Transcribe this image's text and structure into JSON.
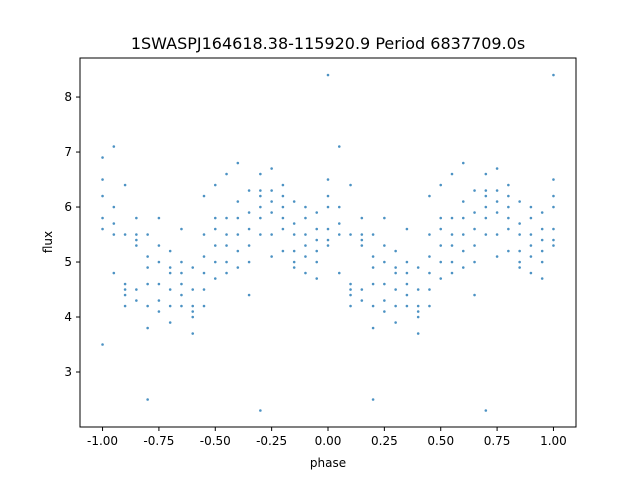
{
  "chart_data": {
    "type": "scatter",
    "title": "1SWASPJ164618.38-115920.9 Period 6837709.0s",
    "xlabel": "phase",
    "ylabel": "flux",
    "xlim": [
      -1.1,
      1.1
    ],
    "ylim": [
      2.0,
      8.71
    ],
    "xticks": [
      "-1.00",
      "-0.75",
      "-0.50",
      "-0.25",
      "0.00",
      "0.25",
      "0.50",
      "0.75",
      "1.00"
    ],
    "xtick_values": [
      -1.0,
      -0.75,
      -0.5,
      -0.25,
      0.0,
      0.25,
      0.5,
      0.75,
      1.0
    ],
    "yticks": [
      "3",
      "4",
      "5",
      "6",
      "7",
      "8"
    ],
    "ytick_values": [
      3,
      4,
      5,
      6,
      7,
      8
    ],
    "grid": false,
    "color": "#1f77b4",
    "points": [
      {
        "x": -1.0,
        "y": [
          6.2,
          6.5,
          5.8,
          5.6,
          6.9,
          3.5
        ]
      },
      {
        "x": -0.95,
        "y": [
          5.7,
          5.5,
          6.0,
          4.8,
          7.1
        ]
      },
      {
        "x": -0.9,
        "y": [
          4.5,
          4.6,
          4.4,
          5.5,
          4.2,
          6.4
        ]
      },
      {
        "x": -0.85,
        "y": [
          5.5,
          5.4,
          5.3,
          4.5,
          4.3,
          5.8
        ]
      },
      {
        "x": -0.8,
        "y": [
          4.9,
          5.1,
          4.6,
          4.2,
          5.5,
          3.8,
          2.5
        ]
      },
      {
        "x": -0.75,
        "y": [
          5.3,
          4.3,
          4.1,
          5.0,
          4.6,
          5.8
        ]
      },
      {
        "x": -0.7,
        "y": [
          4.8,
          4.5,
          4.9,
          4.2,
          5.2,
          3.9
        ]
      },
      {
        "x": -0.65,
        "y": [
          4.4,
          4.6,
          4.2,
          5.0,
          4.8,
          5.6
        ]
      },
      {
        "x": -0.6,
        "y": [
          4.1,
          4.0,
          4.2,
          4.5,
          4.9,
          3.7
        ]
      },
      {
        "x": -0.55,
        "y": [
          4.8,
          4.5,
          5.1,
          5.5,
          4.2,
          6.2
        ]
      },
      {
        "x": -0.5,
        "y": [
          5.3,
          5.0,
          5.6,
          5.8,
          4.7,
          6.4
        ]
      },
      {
        "x": -0.45,
        "y": [
          5.0,
          5.3,
          5.5,
          4.8,
          5.8,
          6.6
        ]
      },
      {
        "x": -0.4,
        "y": [
          5.5,
          5.2,
          5.8,
          6.1,
          4.9,
          6.8
        ]
      },
      {
        "x": -0.35,
        "y": [
          5.3,
          5.6,
          5.0,
          5.9,
          6.3,
          4.4
        ]
      },
      {
        "x": -0.3,
        "y": [
          6.2,
          6.3,
          6.0,
          5.8,
          6.6,
          5.5,
          2.3
        ]
      },
      {
        "x": -0.25,
        "y": [
          6.1,
          5.9,
          6.3,
          5.5,
          5.1,
          6.7
        ]
      },
      {
        "x": -0.2,
        "y": [
          6.0,
          6.2,
          5.8,
          6.4,
          5.6,
          5.2
        ]
      },
      {
        "x": -0.15,
        "y": [
          5.2,
          5.0,
          5.5,
          4.9,
          5.7,
          6.1
        ]
      },
      {
        "x": -0.1,
        "y": [
          5.5,
          5.8,
          5.3,
          5.1,
          6.0,
          4.8
        ]
      },
      {
        "x": -0.05,
        "y": [
          5.4,
          5.2,
          5.6,
          5.0,
          5.9,
          4.7
        ]
      },
      {
        "x": 0.0,
        "y": [
          5.6,
          6.2,
          5.4,
          6.0,
          5.3,
          6.5,
          8.4
        ]
      },
      {
        "x": 0.05,
        "y": [
          5.7,
          5.5,
          6.0,
          4.8,
          7.1
        ]
      },
      {
        "x": 0.1,
        "y": [
          4.5,
          4.6,
          4.4,
          5.5,
          4.2,
          6.4
        ]
      },
      {
        "x": 0.15,
        "y": [
          5.5,
          5.4,
          5.3,
          4.5,
          4.3,
          5.8
        ]
      },
      {
        "x": 0.2,
        "y": [
          4.9,
          5.1,
          4.6,
          4.2,
          5.5,
          3.8,
          2.5
        ]
      },
      {
        "x": 0.25,
        "y": [
          5.3,
          4.3,
          4.1,
          5.0,
          4.6,
          5.8
        ]
      },
      {
        "x": 0.3,
        "y": [
          4.8,
          4.5,
          4.9,
          4.2,
          5.2,
          3.9
        ]
      },
      {
        "x": 0.35,
        "y": [
          4.4,
          4.6,
          4.2,
          5.0,
          4.8,
          5.6
        ]
      },
      {
        "x": 0.4,
        "y": [
          4.1,
          4.0,
          4.2,
          4.5,
          4.9,
          3.7
        ]
      },
      {
        "x": 0.45,
        "y": [
          4.8,
          4.5,
          5.1,
          5.5,
          4.2,
          6.2
        ]
      },
      {
        "x": 0.5,
        "y": [
          5.3,
          5.0,
          5.6,
          5.8,
          4.7,
          6.4
        ]
      },
      {
        "x": 0.55,
        "y": [
          5.0,
          5.3,
          5.5,
          4.8,
          5.8,
          6.6
        ]
      },
      {
        "x": 0.6,
        "y": [
          5.5,
          5.2,
          5.8,
          6.1,
          4.9,
          6.8
        ]
      },
      {
        "x": 0.65,
        "y": [
          5.3,
          5.6,
          5.0,
          5.9,
          6.3,
          4.4
        ]
      },
      {
        "x": 0.7,
        "y": [
          6.2,
          6.3,
          6.0,
          5.8,
          6.6,
          5.5,
          2.3
        ]
      },
      {
        "x": 0.75,
        "y": [
          6.1,
          5.9,
          6.3,
          5.5,
          5.1,
          6.7
        ]
      },
      {
        "x": 0.8,
        "y": [
          6.0,
          6.2,
          5.8,
          6.4,
          5.6,
          5.2
        ]
      },
      {
        "x": 0.85,
        "y": [
          5.2,
          5.0,
          5.5,
          4.9,
          5.7,
          6.1
        ]
      },
      {
        "x": 0.9,
        "y": [
          5.5,
          5.8,
          5.3,
          5.1,
          6.0,
          4.8
        ]
      },
      {
        "x": 0.95,
        "y": [
          5.4,
          5.2,
          5.6,
          5.0,
          5.9,
          4.7
        ]
      },
      {
        "x": 1.0,
        "y": [
          5.6,
          6.2,
          5.4,
          6.0,
          5.3,
          6.5,
          8.4
        ]
      }
    ]
  }
}
